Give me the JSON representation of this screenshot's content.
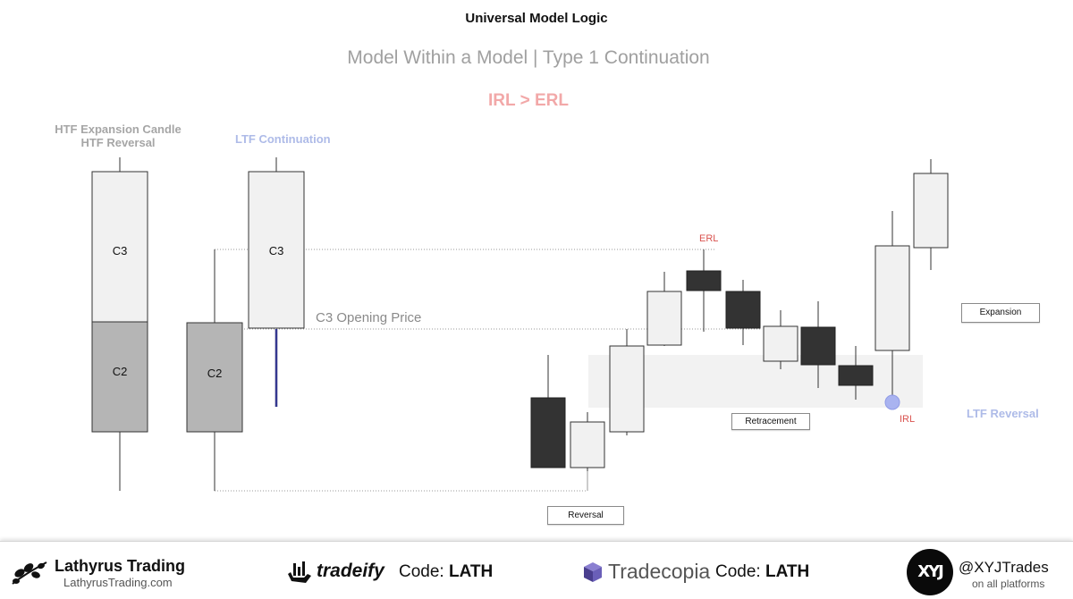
{
  "header": {
    "title": "Universal Model Logic",
    "subtitle": "Model Within a Model | Type 1 Continuation",
    "tag": "IRL > ERL"
  },
  "left_panel": {
    "label_line1": "HTF Expansion Candle",
    "label_line2": "HTF Reversal",
    "c3_label": "C3",
    "c2_label": "C2"
  },
  "middle_panel": {
    "label": "LTF Continuation",
    "c3_label": "C3",
    "c2_label": "C2",
    "opening_price_label": "C3 Opening Price"
  },
  "right_panel": {
    "erl_label": "ERL",
    "irl_label": "IRL",
    "ltf_reversal_label": "LTF Reversal",
    "expansion_label": "Expansion",
    "retracement_label": "Retracement",
    "reversal_label": "Reversal"
  },
  "colors": {
    "bull_fill": "#f1f1f1",
    "bear_fill": "#333333",
    "c2_fill": "#b5b5b5",
    "zone_fill": "#f2f2f2",
    "irl_dot": "#a9b3f0",
    "red_text": "#d9534f",
    "blue_text": "#aebbe8"
  },
  "footer": {
    "brand_name": "Lathyrus Trading",
    "brand_url": "LathyrusTrading.com",
    "tradeify_name": "tradeify",
    "tradeify_code_prefix": "Code:",
    "tradeify_code": "LATH",
    "tradecopia_name": "Tradecopia",
    "tradecopia_code_prefix": "Code:",
    "tradecopia_code": "LATH",
    "handle": "@XYJTrades",
    "handle_sub": "on all platforms",
    "logo_text": "XYJ"
  }
}
